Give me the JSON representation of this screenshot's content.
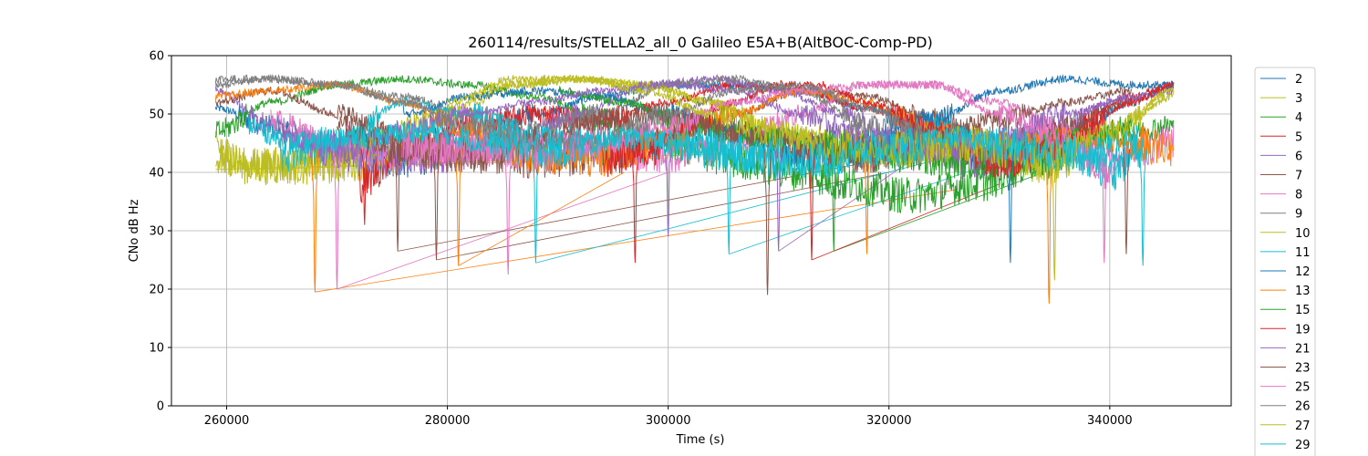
{
  "chart_data": {
    "type": "line",
    "title": "260114/results/STELLA2_all_0 Galileo E5A+B(AltBOC-Comp-PD)",
    "xlabel": "Time (s)",
    "ylabel": "CNo dB Hz",
    "xlim": [
      255000,
      351000
    ],
    "ylim": [
      0,
      60
    ],
    "xticks": [
      260000,
      280000,
      300000,
      320000,
      340000
    ],
    "yticks": [
      0,
      10,
      20,
      30,
      40,
      50,
      60
    ],
    "grid": true,
    "legend_position": "right, outside plot",
    "series": [
      {
        "name": "2",
        "color": "#1f77b4",
        "x": [
          259000,
          264000,
          270000,
          276000,
          282000,
          288000,
          294000,
          300000,
          306000,
          312000,
          318000,
          324000,
          330000,
          336000,
          342000,
          345800
        ],
        "y": [
          51,
          48,
          44,
          42,
          45,
          50,
          53,
          55,
          55,
          54,
          51,
          46,
          42,
          46,
          52,
          55
        ]
      },
      {
        "name": "3",
        "color": "#bcbd22",
        "x": [
          259000,
          262000,
          268000,
          274000,
          280000,
          286000,
          292000,
          298000,
          304000,
          310000,
          316000,
          322000,
          328000,
          334500,
          340000,
          345800
        ],
        "y": [
          44,
          41,
          41,
          42,
          49,
          55,
          56,
          55,
          52,
          47,
          44,
          44,
          44,
          41,
          47,
          53
        ]
      },
      {
        "name": "4",
        "color": "#2ca02c",
        "x": [
          259000,
          264000,
          270000,
          276000,
          282000,
          288000,
          294000,
          300000,
          306000,
          312000,
          316000,
          322000,
          328000,
          334000,
          340000,
          345800
        ],
        "y": [
          47,
          52,
          55,
          56,
          55,
          53,
          49,
          45,
          42,
          40,
          38,
          36,
          38,
          42,
          46,
          48
        ]
      },
      {
        "name": "5",
        "color": "#d62728",
        "x": [
          272000,
          276000,
          282000,
          288000,
          294000,
          300000,
          306000,
          312000,
          318000,
          324000,
          330000,
          336000,
          342000,
          345800
        ],
        "y": [
          38,
          44,
          48,
          50,
          49,
          52,
          55,
          54,
          51,
          48,
          42,
          47,
          53,
          55
        ]
      },
      {
        "name": "6",
        "color": "#9467bd",
        "x": [
          259000,
          264000,
          268000,
          274000,
          280000,
          286000,
          292000,
          298000,
          304000,
          310000,
          316000,
          322000,
          328000,
          334000,
          340000,
          345800
        ],
        "y": [
          54,
          48,
          44,
          42,
          43,
          46,
          50,
          55,
          56,
          54,
          50,
          45,
          42,
          46,
          52,
          54
        ]
      },
      {
        "name": "7",
        "color": "#8c564b",
        "x": [
          259000,
          264000,
          270000,
          276000,
          282000,
          288000,
          294000,
          300000,
          306000,
          312000,
          318000,
          324000,
          330000,
          336000,
          342000
        ],
        "y": [
          52,
          54,
          50,
          46,
          43,
          42,
          43,
          46,
          50,
          54,
          53,
          49,
          45,
          48,
          52
        ]
      },
      {
        "name": "8",
        "color": "#e377c2",
        "x": [
          264000,
          270000,
          276000,
          282000,
          288000,
          294000,
          300000,
          306000,
          312000,
          318000,
          324000,
          330000,
          336000,
          340000,
          345800
        ],
        "y": [
          49,
          45,
          43,
          44,
          46,
          44,
          43,
          45,
          50,
          55,
          55,
          52,
          47,
          42,
          45
        ]
      },
      {
        "name": "9",
        "color": "#7f7f7f",
        "x": [
          259000,
          264000,
          270000,
          276000,
          282000,
          288000,
          294000,
          300000,
          306000,
          312000,
          318000,
          324000
        ],
        "y": [
          55,
          56,
          55,
          53,
          50,
          47,
          50,
          55,
          56,
          54,
          48,
          43
        ]
      },
      {
        "name": "10",
        "color": "#bcbd22",
        "x": [
          259000,
          262000,
          268000,
          274000,
          280000,
          286000,
          292000,
          298000,
          304000,
          310000,
          316000,
          322000
        ],
        "y": [
          43,
          41,
          42,
          46,
          51,
          55,
          56,
          55,
          52,
          47,
          44,
          44
        ]
      },
      {
        "name": "11",
        "color": "#17becf",
        "x": [
          265000,
          270000,
          276000,
          282000,
          288000,
          294000,
          300000,
          306000,
          312000,
          318000,
          324000,
          330000,
          336000,
          340000,
          343000
        ],
        "y": [
          43,
          45,
          52,
          50,
          46,
          44,
          45,
          43,
          42,
          44,
          48,
          45,
          44,
          40,
          44
        ]
      },
      {
        "name": "12",
        "color": "#1f77b4",
        "x": [
          276000,
          282000,
          288000,
          294000,
          300000,
          306000,
          312000,
          318000,
          324000,
          330000,
          336000,
          342000,
          345800
        ],
        "y": [
          50,
          53,
          54,
          53,
          50,
          47,
          44,
          44,
          49,
          54,
          56,
          55,
          55
        ]
      },
      {
        "name": "13",
        "color": "#ff7f0e",
        "x": [
          259000,
          264000,
          270000,
          276000,
          282000,
          288000,
          294000,
          300000,
          306000,
          312000,
          318000,
          324000,
          330000,
          336000,
          342000,
          345800
        ],
        "y": [
          53,
          54,
          55,
          52,
          47,
          43,
          42,
          46,
          50,
          54,
          52,
          47,
          44,
          46,
          45,
          44
        ]
      },
      {
        "name": "15",
        "color": "#2ca02c",
        "x": [
          290000,
          296000,
          302000,
          308000,
          314000,
          320000,
          326000,
          332000,
          338000,
          342000
        ],
        "y": [
          54,
          52,
          48,
          46,
          45,
          43,
          42,
          43,
          46,
          48
        ]
      },
      {
        "name": "19",
        "color": "#d62728",
        "x": [
          294000,
          298000,
          302000,
          306000,
          310000,
          314000,
          318000,
          324000,
          330000,
          336000,
          342000,
          345800
        ],
        "y": [
          42,
          44,
          48,
          52,
          55,
          55,
          52,
          47,
          42,
          45,
          52,
          55
        ]
      },
      {
        "name": "21",
        "color": "#9467bd",
        "x": [
          265000,
          270000,
          276000,
          282000,
          288000,
          294000,
          300000,
          306000,
          312000,
          318000,
          324000,
          330000,
          336000,
          342000
        ],
        "y": [
          46,
          44,
          47,
          50,
          52,
          54,
          55,
          54,
          50,
          46,
          44,
          46,
          50,
          53
        ]
      },
      {
        "name": "23",
        "color": "#8c564b",
        "x": [
          270000,
          276000,
          282000,
          288000,
          294000,
          300000,
          306000,
          312000,
          318000,
          324000,
          330000,
          336000,
          342000
        ],
        "y": [
          48,
          44,
          43,
          45,
          49,
          50,
          47,
          44,
          43,
          46,
          49,
          52,
          54
        ]
      },
      {
        "name": "25",
        "color": "#e377c2",
        "x": [
          276000,
          282000,
          288000,
          294000,
          300000,
          306000,
          312000,
          318000,
          324000,
          330000,
          336000,
          340000
        ],
        "y": [
          45,
          44,
          43,
          45,
          48,
          52,
          54,
          55,
          55,
          50,
          45,
          40
        ]
      },
      {
        "name": "26",
        "color": "#7f7f7f",
        "x": [
          259000,
          264000,
          270000,
          276000,
          282000,
          288000,
          294000,
          300000,
          306000,
          312000,
          318000,
          324000,
          330000
        ],
        "y": [
          56,
          56,
          55,
          52,
          48,
          45,
          46,
          50,
          54,
          55,
          51,
          46,
          43
        ]
      },
      {
        "name": "27",
        "color": "#bcbd22",
        "x": [
          280000,
          286000,
          292000,
          298000,
          304000,
          310000,
          316000,
          322000,
          328000,
          334000,
          340000,
          345800
        ],
        "y": [
          52,
          56,
          56,
          54,
          50,
          46,
          44,
          44,
          45,
          42,
          47,
          54
        ]
      },
      {
        "name": "29",
        "color": "#17becf",
        "x": [
          262000,
          266000,
          272000,
          278000,
          284000,
          290000,
          296000,
          302000,
          308000,
          314000,
          320000,
          326000,
          332000,
          338000,
          343000
        ],
        "y": [
          48,
          45,
          46,
          47,
          45,
          44,
          46,
          45,
          43,
          42,
          44,
          46,
          44,
          43,
          45
        ]
      }
    ],
    "dips": [
      {
        "color": "#ff7f0e",
        "x": 268000,
        "y": 19.5
      },
      {
        "color": "#e377c2",
        "x": 270000,
        "y": 20
      },
      {
        "color": "#d62728",
        "x": 272500,
        "y": 31
      },
      {
        "color": "#8c564b",
        "x": 275500,
        "y": 26.5
      },
      {
        "color": "#8c564b",
        "x": 279000,
        "y": 25
      },
      {
        "color": "#ff7f0e",
        "x": 281000,
        "y": 24
      },
      {
        "color": "#e377c2",
        "x": 285500,
        "y": 22.5
      },
      {
        "color": "#17becf",
        "x": 288000,
        "y": 24.5
      },
      {
        "color": "#d62728",
        "x": 297000,
        "y": 24.5
      },
      {
        "color": "#9467bd",
        "x": 300000,
        "y": 29
      },
      {
        "color": "#17becf",
        "x": 305500,
        "y": 26
      },
      {
        "color": "#8c564b",
        "x": 309000,
        "y": 19
      },
      {
        "color": "#9467bd",
        "x": 310000,
        "y": 26.5
      },
      {
        "color": "#d62728",
        "x": 313000,
        "y": 25
      },
      {
        "color": "#2ca02c",
        "x": 315000,
        "y": 26.5
      },
      {
        "color": "#ff7f0e",
        "x": 318000,
        "y": 26
      },
      {
        "color": "#1f77b4",
        "x": 331000,
        "y": 24.5
      },
      {
        "color": "#ff7f0e",
        "x": 334500,
        "y": 17.5
      },
      {
        "color": "#bcbd22",
        "x": 335000,
        "y": 21.5
      },
      {
        "color": "#e377c2",
        "x": 339500,
        "y": 24.5
      },
      {
        "color": "#8c564b",
        "x": 341500,
        "y": 26
      },
      {
        "color": "#17becf",
        "x": 343000,
        "y": 24
      }
    ],
    "connectors": [
      {
        "color": "#bcbd22",
        "x": [
          259000,
          320000
        ],
        "y": [
          40.5,
          44
        ]
      },
      {
        "color": "#ff7f0e",
        "x": [
          268000,
          326000
        ],
        "y": [
          19.5,
          37
        ]
      },
      {
        "color": "#e377c2",
        "x": [
          270000,
          300000
        ],
        "y": [
          20,
          40
        ]
      },
      {
        "color": "#8c564b",
        "x": [
          275500,
          330000
        ],
        "y": [
          26.5,
          46
        ]
      },
      {
        "color": "#8c564b",
        "x": [
          279000,
          320000
        ],
        "y": [
          25,
          40
        ]
      },
      {
        "color": "#ff7f0e",
        "x": [
          281000,
          296000
        ],
        "y": [
          24,
          40
        ]
      },
      {
        "color": "#17becf",
        "x": [
          288000,
          324000
        ],
        "y": [
          24.5,
          42
        ]
      },
      {
        "color": "#17becf",
        "x": [
          305500,
          330000
        ],
        "y": [
          26,
          42
        ]
      },
      {
        "color": "#9467bd",
        "x": [
          310000,
          322000
        ],
        "y": [
          26.5,
          42
        ]
      },
      {
        "color": "#2ca02c",
        "x": [
          315000,
          334000
        ],
        "y": [
          26.5,
          40
        ]
      },
      {
        "color": "#d62728",
        "x": [
          313000,
          330000
        ],
        "y": [
          25,
          38
        ]
      },
      {
        "color": "#bcbd22",
        "x": [
          262000,
          300000
        ],
        "y": [
          40.5,
          42.5
        ]
      }
    ]
  }
}
